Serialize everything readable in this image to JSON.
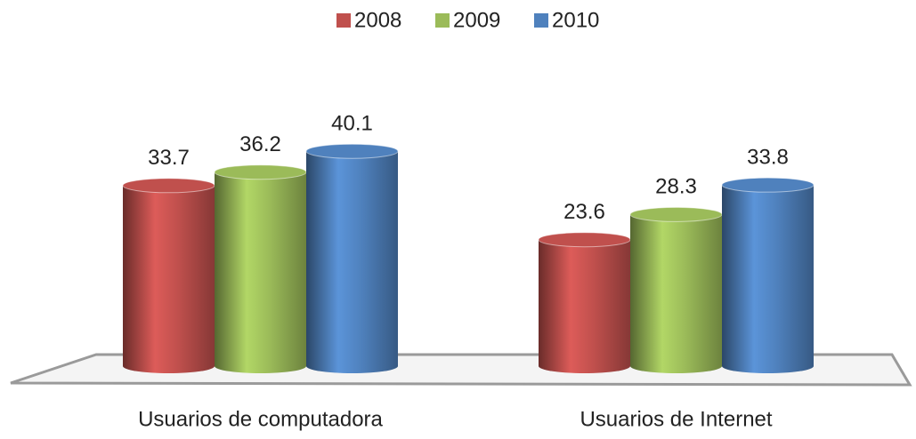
{
  "chart_data": {
    "type": "bar",
    "categories": [
      "Usuarios de computadora",
      "Usuarios de Internet"
    ],
    "series": [
      {
        "name": "2008",
        "color": "#c0504d",
        "values": [
          33.7,
          23.6
        ]
      },
      {
        "name": "2009",
        "color": "#9bbb59",
        "values": [
          36.2,
          28.3
        ]
      },
      {
        "name": "2010",
        "color": "#4f81bd",
        "values": [
          40.1,
          33.8
        ]
      }
    ],
    "legend": "top"
  }
}
